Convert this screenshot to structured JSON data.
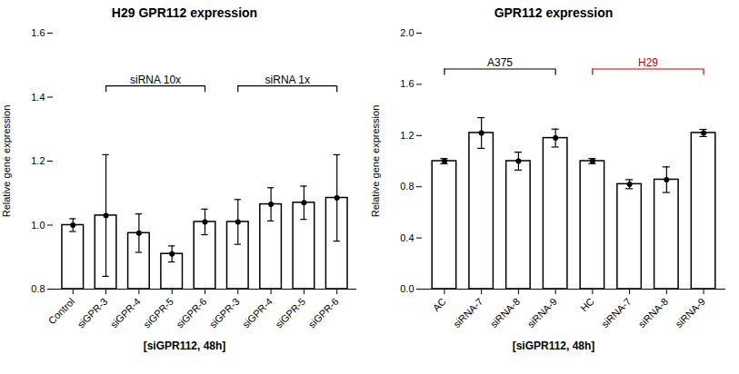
{
  "chart_data": [
    {
      "type": "bar",
      "title": "H29 GPR112 expression",
      "xlabel": "[siGPR112, 48h]",
      "ylabel": "Relative gene expression",
      "categories": [
        "Control",
        "siGPR-3",
        "siGPR-4",
        "siGPR-5",
        "siGPR-6",
        "siGPR-3",
        "siGPR-4",
        "siGPR-5",
        "siGPR-6"
      ],
      "values": [
        1.0,
        1.03,
        0.975,
        0.91,
        1.01,
        1.01,
        1.065,
        1.07,
        1.085
      ],
      "errors": [
        0.02,
        0.19,
        0.06,
        0.025,
        0.04,
        0.07,
        0.052,
        0.052,
        0.135
      ],
      "color": "#ffffff",
      "ylim": [
        0.8,
        1.6
      ],
      "yticks": [
        0.8,
        {
          "value": 1.0,
          "label": "1.0"
        },
        1.2,
        1.4,
        1.6
      ],
      "annotations": [
        {
          "text": "siRNA 10x",
          "x1": 1,
          "x2": 4,
          "y": 1.435,
          "color": "#000000"
        },
        {
          "text": "siRNA 1x",
          "x1": 5,
          "x2": 8,
          "y": 1.435,
          "color": "#000000"
        }
      ]
    },
    {
      "type": "bar",
      "title": "GPR112 expression",
      "xlabel": "[siGPR112, 48h]",
      "ylabel": "Relative gene expression",
      "categories": [
        "AC",
        "siRNA-7",
        "siRNA-8",
        "siRNA-9",
        "HC",
        "siRNA-7",
        "siRNA-8",
        "siRNA-9"
      ],
      "values": [
        1.0,
        1.22,
        1.0,
        1.18,
        1.0,
        0.82,
        0.855,
        1.22
      ],
      "errors": [
        0.02,
        0.12,
        0.07,
        0.07,
        0.02,
        0.035,
        0.1,
        0.028
      ],
      "color": "#ffffff",
      "ylim": [
        0.0,
        2.0
      ],
      "yticks": [
        {
          "value": 0.0,
          "label": "0.0"
        },
        0.4,
        0.8,
        1.2,
        1.6,
        {
          "value": 2.0,
          "label": "2.0"
        }
      ],
      "annotations": [
        {
          "text": "A375",
          "x1": 0,
          "x2": 3,
          "y": 1.72,
          "color": "#000000"
        },
        {
          "text": "H29",
          "x1": 4,
          "x2": 7,
          "y": 1.72,
          "color": "#cc0000"
        }
      ]
    }
  ]
}
